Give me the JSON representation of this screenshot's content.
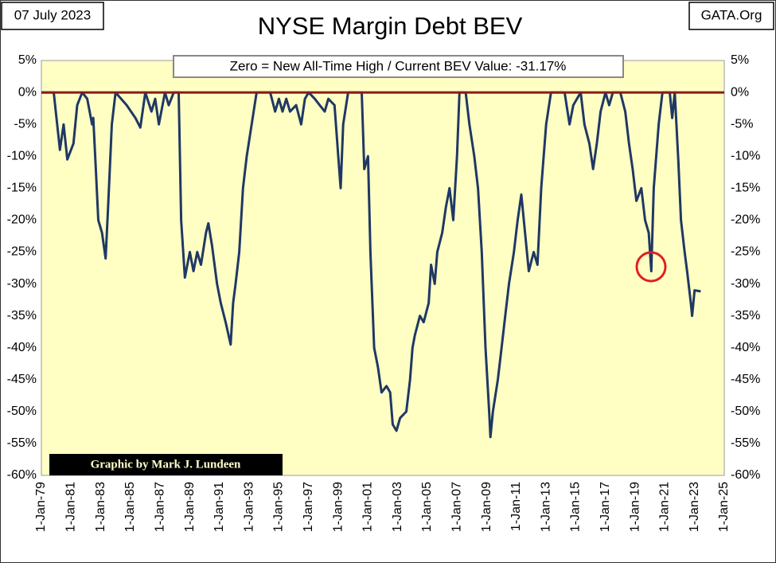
{
  "chart_data": {
    "type": "line",
    "title": "NYSE Margin Debt BEV",
    "date_label": "07 July 2023",
    "source": "GATA.Org",
    "annotation": "Zero = New All-Time  High / Current BEV Value:  -31.17%",
    "credit": "Graphic by Mark J. Lundeen",
    "background": "#ffffc4",
    "grid": true,
    "reference_line": {
      "value": 0,
      "color": "#8b1a1a"
    },
    "xlim": [
      "1979-01-01",
      "2025-01-01"
    ],
    "xticks": [
      {
        "value": "1979-01-01",
        "label": "1-Jan-79"
      },
      {
        "value": "1981-01-01",
        "label": "1-Jan-81"
      },
      {
        "value": "1983-01-01",
        "label": "1-Jan-83"
      },
      {
        "value": "1985-01-01",
        "label": "1-Jan-85"
      },
      {
        "value": "1987-01-01",
        "label": "1-Jan-87"
      },
      {
        "value": "1989-01-01",
        "label": "1-Jan-89"
      },
      {
        "value": "1991-01-01",
        "label": "1-Jan-91"
      },
      {
        "value": "1993-01-01",
        "label": "1-Jan-93"
      },
      {
        "value": "1995-01-01",
        "label": "1-Jan-95"
      },
      {
        "value": "1997-01-01",
        "label": "1-Jan-97"
      },
      {
        "value": "1999-01-01",
        "label": "1-Jan-99"
      },
      {
        "value": "2001-01-01",
        "label": "1-Jan-01"
      },
      {
        "value": "2003-01-01",
        "label": "1-Jan-03"
      },
      {
        "value": "2005-01-01",
        "label": "1-Jan-05"
      },
      {
        "value": "2007-01-01",
        "label": "1-Jan-07"
      },
      {
        "value": "2009-01-01",
        "label": "1-Jan-09"
      },
      {
        "value": "2011-01-01",
        "label": "1-Jan-11"
      },
      {
        "value": "2013-01-01",
        "label": "1-Jan-13"
      },
      {
        "value": "2015-01-01",
        "label": "1-Jan-15"
      },
      {
        "value": "2017-01-01",
        "label": "1-Jan-17"
      },
      {
        "value": "2019-01-01",
        "label": "1-Jan-19"
      },
      {
        "value": "2021-01-01",
        "label": "1-Jan-21"
      },
      {
        "value": "2023-01-01",
        "label": "1-Jan-23"
      },
      {
        "value": "2025-01-01",
        "label": "1-Jan-25"
      }
    ],
    "ylim": [
      -60,
      5
    ],
    "yticks": [
      {
        "value": 5,
        "label": "5%"
      },
      {
        "value": 0,
        "label": "0%"
      },
      {
        "value": -5,
        "label": "-5%"
      },
      {
        "value": -10,
        "label": "-10%"
      },
      {
        "value": -15,
        "label": "-15%"
      },
      {
        "value": -20,
        "label": "-20%"
      },
      {
        "value": -25,
        "label": "-25%"
      },
      {
        "value": -30,
        "label": "-30%"
      },
      {
        "value": -35,
        "label": "-35%"
      },
      {
        "value": -40,
        "label": "-40%"
      },
      {
        "value": -45,
        "label": "-45%"
      },
      {
        "value": -50,
        "label": "-50%"
      },
      {
        "value": -55,
        "label": "-55%"
      },
      {
        "value": -60,
        "label": "-60%"
      }
    ],
    "x": [
      "1979-01",
      "1979-11",
      "1980-04",
      "1980-07",
      "1980-10",
      "1981-03",
      "1981-06",
      "1981-10",
      "1982-02",
      "1982-06",
      "1982-07",
      "1982-09",
      "1982-11",
      "1983-02",
      "1983-05",
      "1983-07",
      "1983-10",
      "1984-01",
      "1984-10",
      "1985-05",
      "1985-09",
      "1986-01",
      "1986-06",
      "1986-09",
      "1986-12",
      "1987-05",
      "1987-08",
      "1987-12",
      "1988-04",
      "1988-06",
      "1988-09",
      "1989-01",
      "1989-04",
      "1989-07",
      "1989-10",
      "1990-02",
      "1990-04",
      "1990-07",
      "1990-11",
      "1991-02",
      "1991-06",
      "1991-10",
      "1991-12",
      "1992-02",
      "1992-05",
      "1992-08",
      "1992-11",
      "1993-03",
      "1993-07",
      "1994-06",
      "1994-10",
      "1995-01",
      "1995-04",
      "1995-07",
      "1995-10",
      "1996-03",
      "1996-07",
      "1996-10",
      "1997-01",
      "1997-06",
      "1997-10",
      "1998-02",
      "1998-05",
      "1998-10",
      "1999-01",
      "1999-03",
      "1999-05",
      "1999-09",
      "2000-08",
      "2000-10",
      "2001-01",
      "2001-03",
      "2001-06",
      "2001-09",
      "2001-12",
      "2002-04",
      "2002-07",
      "2002-09",
      "2002-12",
      "2003-03",
      "2003-08",
      "2003-11",
      "2004-01",
      "2004-03",
      "2004-07",
      "2004-10",
      "2005-02",
      "2005-04",
      "2005-07",
      "2005-09",
      "2006-01",
      "2006-04",
      "2006-07",
      "2006-10",
      "2007-01",
      "2007-03",
      "2007-08",
      "2007-11",
      "2008-03",
      "2008-06",
      "2008-09",
      "2008-12",
      "2009-03",
      "2009-04",
      "2009-06",
      "2009-10",
      "2010-01",
      "2010-04",
      "2010-07",
      "2010-11",
      "2011-02",
      "2011-05",
      "2011-08",
      "2011-11",
      "2012-03",
      "2012-06",
      "2012-09",
      "2013-01",
      "2013-05",
      "2014-04",
      "2014-08",
      "2014-11",
      "2015-05",
      "2015-08",
      "2015-12",
      "2016-03",
      "2016-06",
      "2016-09",
      "2017-01",
      "2017-04",
      "2017-07",
      "2018-01",
      "2018-05",
      "2018-08",
      "2018-11",
      "2019-02",
      "2019-06",
      "2019-09",
      "2019-12",
      "2020-02",
      "2020-04",
      "2020-08",
      "2020-11",
      "2021-05",
      "2021-07",
      "2021-09",
      "2021-12",
      "2022-02",
      "2022-05",
      "2022-07",
      "2022-10",
      "2022-11",
      "2023-01",
      "2023-06"
    ],
    "series": [
      {
        "name": "NYSE Margin Debt BEV",
        "color": "#1f3864",
        "values": [
          0,
          0,
          -9,
          -5,
          -10.5,
          -8,
          -2,
          0,
          -1,
          -5,
          -4,
          -12,
          -20,
          -22,
          -26,
          -18,
          -5,
          0,
          -2,
          -4,
          -5.5,
          0,
          -3,
          -1,
          -5,
          0,
          -2,
          0,
          0,
          -20,
          -29,
          -25,
          -28,
          -25,
          -27,
          -22,
          -20.5,
          -24,
          -30,
          -33,
          -36,
          -39.5,
          -33,
          -30,
          -25,
          -15,
          -10,
          -5,
          0,
          0,
          -3,
          -1,
          -3,
          -1,
          -3,
          -2,
          -5,
          -1,
          0,
          -1,
          -2,
          -3,
          -1,
          -2,
          -10,
          -15,
          -5,
          0,
          0,
          -12,
          -10,
          -25,
          -40,
          -43,
          -47,
          -46,
          -47,
          -52,
          -53,
          -51,
          -50,
          -45,
          -40,
          -38,
          -35,
          -36,
          -33,
          -27,
          -30,
          -25,
          -22,
          -18,
          -15,
          -20,
          -10,
          0,
          0,
          -5,
          -10,
          -15,
          -25,
          -40,
          -50,
          -54,
          -50,
          -45,
          -40,
          -35,
          -30,
          -25,
          -20,
          -16,
          -22,
          -28,
          -25,
          -27,
          -15,
          -5,
          0,
          0,
          -5,
          -2,
          0,
          -5,
          -8,
          -12,
          -8,
          -3,
          0,
          -2,
          0,
          0,
          -3,
          -8,
          -12,
          -17,
          -15,
          -20,
          -22,
          -28,
          -15,
          -5,
          0,
          0,
          -4,
          0,
          -11,
          -20,
          -25,
          -28,
          -33,
          -35,
          -31,
          -31.17
        ]
      }
    ]
  }
}
